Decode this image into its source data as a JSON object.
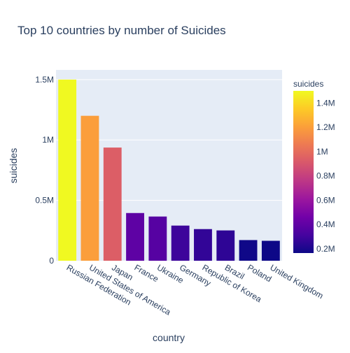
{
  "chart_data": {
    "type": "bar",
    "title": "Top 10 countries by number of Suicides",
    "xlabel": "country",
    "ylabel": "suicides",
    "categories": [
      "Russian Federation",
      "United States of America",
      "Japan",
      "France",
      "Ukraine",
      "Germany",
      "Republic of Korea",
      "Brazil",
      "Poland",
      "United Kingdom"
    ],
    "values": [
      1500000,
      1200000,
      937000,
      395000,
      366000,
      291000,
      262000,
      251000,
      171000,
      165000
    ],
    "ylim": [
      0,
      1580000
    ],
    "y_ticks": [
      {
        "value": 0,
        "label": "0"
      },
      {
        "value": 500000,
        "label": "0.5M"
      },
      {
        "value": 1000000,
        "label": "1M"
      },
      {
        "value": 1500000,
        "label": "1.5M"
      }
    ],
    "grid": true,
    "plot_background": "#e5ecf6",
    "colorscale": [
      "#0d0887",
      "#46039f",
      "#7201a8",
      "#9c179e",
      "#bd3786",
      "#d8576b",
      "#ed7953",
      "#fb9f3a",
      "#fdca26",
      "#f0f921"
    ],
    "colorbar": {
      "title": "suicides",
      "range": [
        165000,
        1500000
      ],
      "ticks": [
        {
          "value": 200000,
          "label": "0.2M"
        },
        {
          "value": 400000,
          "label": "0.4M"
        },
        {
          "value": 600000,
          "label": "0.6M"
        },
        {
          "value": 800000,
          "label": "0.8M"
        },
        {
          "value": 1000000,
          "label": "1M"
        },
        {
          "value": 1200000,
          "label": "1.2M"
        },
        {
          "value": 1400000,
          "label": "1.4M"
        }
      ]
    }
  }
}
